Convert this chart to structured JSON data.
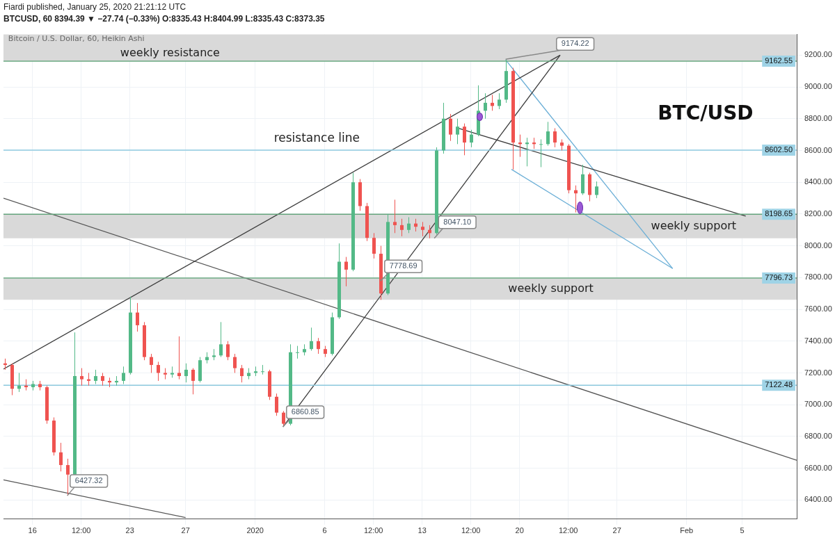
{
  "chart_data": {
    "type": "candlestick",
    "title": "Fiardi published, January 25, 2020 21:21:12 UTC",
    "subtitle": "BTCUSD, 60  8394.39 ▼ −27.74 (−0.33%)  O:8335.43  H:8404.99  L:8335.43  C:8373.35",
    "annotations": [
      "Bitcoin / U.S. Dollar, 60, Heikin Ashi",
      "resistance line",
      "BTC/USD",
      {
        "text": "6427.32",
        "x": "2019-12-18T12:00",
        "y": 6427.32
      },
      {
        "text": "6860.85",
        "x": "2020-01-03T00:00",
        "y": 6860.85
      },
      {
        "text": "7778.69",
        "x": "2020-01-10T00:00",
        "y": 7778.69
      },
      {
        "text": "8047.10",
        "x": "2020-01-13T21:00",
        "y": 8047.1
      },
      {
        "text": "9174.22",
        "x": "2020-01-19T00:00",
        "y": 9174.22
      }
    ],
    "x": [
      "2019-12-14T00:00",
      "2019-12-14T12:00",
      "2019-12-15T00:00",
      "2019-12-15T12:00",
      "2019-12-16T00:00",
      "2019-12-16T12:00",
      "2019-12-17T00:00",
      "2019-12-17T12:00",
      "2019-12-18T00:00",
      "2019-12-18T12:00",
      "2019-12-19T00:00",
      "2019-12-19T12:00",
      "2019-12-20T00:00",
      "2019-12-20T12:00",
      "2019-12-21T00:00",
      "2019-12-21T12:00",
      "2019-12-22T00:00",
      "2019-12-22T12:00",
      "2019-12-23T00:00",
      "2019-12-23T12:00",
      "2019-12-24T00:00",
      "2019-12-24T12:00",
      "2019-12-25T00:00",
      "2019-12-25T12:00",
      "2019-12-26T00:00",
      "2019-12-26T12:00",
      "2019-12-27T00:00",
      "2019-12-27T12:00",
      "2019-12-28T00:00",
      "2019-12-28T12:00",
      "2019-12-29T00:00",
      "2019-12-29T12:00",
      "2019-12-30T00:00",
      "2019-12-30T12:00",
      "2019-12-31T00:00",
      "2019-12-31T12:00",
      "2020-01-01T00:00",
      "2020-01-01T12:00",
      "2020-01-02T00:00",
      "2020-01-02T12:00",
      "2020-01-03T00:00",
      "2020-01-03T12:00",
      "2020-01-04T00:00",
      "2020-01-04T12:00",
      "2020-01-05T00:00",
      "2020-01-05T12:00",
      "2020-01-06T00:00",
      "2020-01-06T12:00",
      "2020-01-07T00:00",
      "2020-01-07T12:00",
      "2020-01-08T00:00",
      "2020-01-08T12:00",
      "2020-01-09T00:00",
      "2020-01-09T12:00",
      "2020-01-10T00:00",
      "2020-01-10T12:00",
      "2020-01-11T00:00",
      "2020-01-11T12:00",
      "2020-01-12T00:00",
      "2020-01-12T12:00",
      "2020-01-13T00:00",
      "2020-01-13T12:00",
      "2020-01-14T00:00",
      "2020-01-14T12:00",
      "2020-01-15T00:00",
      "2020-01-15T12:00",
      "2020-01-16T00:00",
      "2020-01-16T12:00",
      "2020-01-17T00:00",
      "2020-01-17T12:00",
      "2020-01-18T00:00",
      "2020-01-18T12:00",
      "2020-01-19T00:00",
      "2020-01-19T12:00",
      "2020-01-20T00:00",
      "2020-01-20T12:00",
      "2020-01-21T00:00",
      "2020-01-21T12:00",
      "2020-01-22T00:00",
      "2020-01-22T12:00",
      "2020-01-23T00:00",
      "2020-01-23T12:00",
      "2020-01-24T00:00",
      "2020-01-24T12:00",
      "2020-01-25T00:00",
      "2020-01-25T12:00"
    ],
    "ohlc": [
      [
        7260,
        7290,
        7220,
        7250
      ],
      [
        7250,
        7260,
        7060,
        7100
      ],
      [
        7100,
        7200,
        7080,
        7120
      ],
      [
        7120,
        7160,
        7090,
        7110
      ],
      [
        7110,
        7150,
        7090,
        7130
      ],
      [
        7130,
        7150,
        7090,
        7110
      ],
      [
        7110,
        7120,
        6880,
        6900
      ],
      [
        6900,
        6920,
        6680,
        6700
      ],
      [
        6700,
        6760,
        6580,
        6620
      ],
      [
        6620,
        6660,
        6427.32,
        6560
      ],
      [
        6560,
        7455,
        6550,
        7180
      ],
      [
        7180,
        7230,
        7120,
        7160
      ],
      [
        7160,
        7200,
        7120,
        7150
      ],
      [
        7150,
        7220,
        7130,
        7180
      ],
      [
        7180,
        7200,
        7120,
        7150
      ],
      [
        7150,
        7170,
        7110,
        7140
      ],
      [
        7140,
        7180,
        7120,
        7150
      ],
      [
        7150,
        7240,
        7130,
        7200
      ],
      [
        7200,
        7680,
        7190,
        7580
      ],
      [
        7580,
        7640,
        7460,
        7500
      ],
      [
        7500,
        7520,
        7280,
        7300
      ],
      [
        7300,
        7320,
        7200,
        7250
      ],
      [
        7250,
        7270,
        7150,
        7200
      ],
      [
        7200,
        7230,
        7160,
        7190
      ],
      [
        7190,
        7240,
        7170,
        7200
      ],
      [
        7200,
        7430,
        7160,
        7180
      ],
      [
        7180,
        7260,
        7140,
        7220
      ],
      [
        7220,
        7230,
        7065,
        7150
      ],
      [
        7150,
        7300,
        7140,
        7280
      ],
      [
        7280,
        7330,
        7260,
        7300
      ],
      [
        7300,
        7350,
        7280,
        7310
      ],
      [
        7310,
        7520,
        7300,
        7380
      ],
      [
        7380,
        7400,
        7280,
        7300
      ],
      [
        7300,
        7320,
        7200,
        7230
      ],
      [
        7230,
        7250,
        7140,
        7180
      ],
      [
        7180,
        7230,
        7160,
        7200
      ],
      [
        7200,
        7240,
        7180,
        7210
      ],
      [
        7210,
        7250,
        7190,
        7210
      ],
      [
        7210,
        7220,
        7030,
        7050
      ],
      [
        7050,
        7070,
        6930,
        6950
      ],
      [
        6950,
        6960,
        6860.85,
        6880
      ],
      [
        6880,
        7380,
        6870,
        7330
      ],
      [
        7330,
        7370,
        7290,
        7330
      ],
      [
        7330,
        7380,
        7310,
        7350
      ],
      [
        7350,
        7485,
        7340,
        7400
      ],
      [
        7400,
        7420,
        7320,
        7350
      ],
      [
        7350,
        7370,
        7300,
        7320
      ],
      [
        7320,
        7580,
        7310,
        7550
      ],
      [
        7550,
        8015,
        7540,
        7900
      ],
      [
        7900,
        7930,
        7745,
        7850
      ],
      [
        7850,
        8460,
        7840,
        8400
      ],
      [
        8400,
        8420,
        8220,
        8250
      ],
      [
        8250,
        8270,
        8030,
        8050
      ],
      [
        8050,
        8080,
        7920,
        7950
      ],
      [
        7950,
        8000,
        7660,
        7700
      ],
      [
        7700,
        8200,
        7690,
        8150
      ],
      [
        8150,
        8290,
        8080,
        8130
      ],
      [
        8130,
        8170,
        8060,
        8100
      ],
      [
        8100,
        8180,
        8080,
        8140
      ],
      [
        8140,
        8170,
        8090,
        8120
      ],
      [
        8120,
        8150,
        8060,
        8100
      ],
      [
        8100,
        8130,
        8047.1,
        8080
      ],
      [
        8080,
        8620,
        8070,
        8600
      ],
      [
        8600,
        8900,
        8580,
        8800
      ],
      [
        8800,
        8830,
        8660,
        8700
      ],
      [
        8700,
        8800,
        8640,
        8750
      ],
      [
        8750,
        8770,
        8570,
        8650
      ],
      [
        8650,
        8730,
        8620,
        8700
      ],
      [
        8700,
        9010,
        8690,
        8850
      ],
      [
        8850,
        8960,
        8800,
        8900
      ],
      [
        8900,
        8950,
        8850,
        8880
      ],
      [
        8880,
        8960,
        8860,
        8920
      ],
      [
        8920,
        9174.22,
        8900,
        9100
      ],
      [
        9100,
        9120,
        8480,
        8650
      ],
      [
        8650,
        8700,
        8560,
        8640
      ],
      [
        8640,
        8680,
        8500,
        8650
      ],
      [
        8650,
        8680,
        8610,
        8640
      ],
      [
        8640,
        8670,
        8495,
        8640
      ],
      [
        8640,
        8780,
        8630,
        8720
      ],
      [
        8720,
        8740,
        8620,
        8650
      ],
      [
        8650,
        8670,
        8600,
        8630
      ],
      [
        8630,
        8640,
        8330,
        8350
      ],
      [
        8350,
        8380,
        8210,
        8330
      ],
      [
        8330,
        8510,
        8320,
        8450
      ],
      [
        8450,
        8460,
        8280,
        8320
      ],
      [
        8320,
        8404.99,
        8300,
        8373.35
      ]
    ],
    "colors": [
      "#ef5350",
      "#ef5350",
      "#53b987",
      "#ef5350",
      "#53b987",
      "#ef5350",
      "#ef5350",
      "#ef5350",
      "#ef5350",
      "#ef5350",
      "#53b987",
      "#ef5350",
      "#ef5350",
      "#53b987",
      "#ef5350",
      "#ef5350",
      "#53b987",
      "#53b987",
      "#53b987",
      "#ef5350",
      "#ef5350",
      "#ef5350",
      "#ef5350",
      "#ef5350",
      "#53b987",
      "#ef5350",
      "#53b987",
      "#ef5350",
      "#53b987",
      "#53b987",
      "#53b987",
      "#53b987",
      "#ef5350",
      "#ef5350",
      "#ef5350",
      "#53b987",
      "#53b987",
      "#53b987",
      "#ef5350",
      "#ef5350",
      "#ef5350",
      "#53b987",
      "#53b987",
      "#53b987",
      "#53b987",
      "#ef5350",
      "#ef5350",
      "#53b987",
      "#53b987",
      "#ef5350",
      "#53b987",
      "#ef5350",
      "#ef5350",
      "#ef5350",
      "#ef5350",
      "#53b987",
      "#ef5350",
      "#ef5350",
      "#53b987",
      "#ef5350",
      "#ef5350",
      "#ef5350",
      "#53b987",
      "#53b987",
      "#ef5350",
      "#53b987",
      "#ef5350",
      "#53b987",
      "#53b987",
      "#53b987",
      "#ef5350",
      "#53b987",
      "#53b987",
      "#ef5350",
      "#ef5350",
      "#53b987",
      "#ef5350",
      "#53b987",
      "#53b987",
      "#ef5350",
      "#ef5350",
      "#ef5350",
      "#ef5350",
      "#53b987",
      "#ef5350",
      "#53b987"
    ],
    "series": [
      {
        "type": "line",
        "color": "#3c3c3c",
        "x": [
          "2019-12-13T22:00",
          "2020-01-22T22:00"
        ],
        "values": [
          7224,
          9200
        ]
      },
      {
        "type": "line",
        "color": "#3c3c3c",
        "x": [
          "2020-01-03T00:00",
          "2020-01-22T22:00"
        ],
        "values": [
          6860.85,
          9200
        ]
      },
      {
        "type": "line",
        "color": "#555555",
        "x": [
          "2019-12-13T22:00",
          "2020-02-08T22:00"
        ],
        "values": [
          8300,
          6650
        ]
      },
      {
        "type": "line",
        "color": "#555555",
        "x": [
          "2019-12-13T22:00",
          "2019-12-27T00:00"
        ],
        "values": [
          6527,
          6290
        ]
      },
      {
        "type": "line",
        "color": "#3c3c3c",
        "x": [
          "2020-01-15T14:00",
          "2020-02-05T06:00"
        ],
        "values": [
          8740,
          8187
        ]
      },
      {
        "type": "line",
        "color": "#6aaed6",
        "x": [
          "2020-01-19T00:00",
          "2020-01-31T00:00"
        ],
        "values": [
          9170,
          7857
        ]
      },
      {
        "type": "line",
        "color": "#6aaed6",
        "x": [
          "2020-01-19T10:00",
          "2020-01-31T00:00"
        ],
        "values": [
          8481,
          7857
        ]
      }
    ],
    "bands": [
      {
        "axis": "y",
        "from": 9162.55,
        "to": 9330,
        "label": "weekly resistance",
        "color": "#d9d9d9"
      },
      {
        "axis": "y",
        "from": 8047.1,
        "to": 8198.65,
        "label": "weekly support",
        "color": "#d9d9d9"
      },
      {
        "axis": "y",
        "from": 7660,
        "to": 7796.73,
        "label": "weekly support",
        "color": "#d9d9d9"
      }
    ],
    "ref_lines": [
      {
        "axis": "y",
        "value": 9162.55,
        "label": "9162.55",
        "color": "#6aa880"
      },
      {
        "axis": "y",
        "value": 8602.5,
        "label": "8602.50",
        "color": "#8fcbe0"
      },
      {
        "axis": "y",
        "value": 8198.65,
        "label": "8198.65",
        "color": "#66a67c"
      },
      {
        "axis": "y",
        "value": 7796.73,
        "label": "7796.73",
        "color": "#6eab84"
      },
      {
        "axis": "y",
        "value": 7122.48,
        "label": "7122.48",
        "color": "#8bc8dd"
      }
    ],
    "xlim": [
      "2019-12-13T22:00",
      "2020-02-08T22:00"
    ],
    "xticks": [
      {
        "value": "2019-12-16",
        "label": "16"
      },
      {
        "value": "2019-12-19T12:00",
        "label": "12:00"
      },
      {
        "value": "2019-12-23",
        "label": "23"
      },
      {
        "value": "2019-12-27",
        "label": "27"
      },
      {
        "value": "2020-01-01",
        "label": "2020"
      },
      {
        "value": "2020-01-06",
        "label": "6"
      },
      {
        "value": "2020-01-09T12:00",
        "label": "12:00"
      },
      {
        "value": "2020-01-13",
        "label": "13"
      },
      {
        "value": "2020-01-16T12:00",
        "label": "12:00"
      },
      {
        "value": "2020-01-20",
        "label": "20"
      },
      {
        "value": "2020-01-23T12:00",
        "label": "12:00"
      },
      {
        "value": "2020-01-27",
        "label": "27"
      },
      {
        "value": "2020-02-01",
        "label": "Feb"
      },
      {
        "value": "2020-02-05",
        "label": "5"
      }
    ],
    "ylim": [
      6280,
      9330
    ],
    "yticks": [
      {
        "value": 6400,
        "label": "6400.00"
      },
      {
        "value": 6600,
        "label": "6600.00"
      },
      {
        "value": 6800,
        "label": "6800.00"
      },
      {
        "value": 7000,
        "label": "7000.00"
      },
      {
        "value": 7200,
        "label": "7200.00"
      },
      {
        "value": 7400,
        "label": "7400.00"
      },
      {
        "value": 7600,
        "label": "7600.00"
      },
      {
        "value": 7800,
        "label": "7800.00"
      },
      {
        "value": 8000,
        "label": "8000.00"
      },
      {
        "value": 8200,
        "label": "8200.00"
      },
      {
        "value": 8400,
        "label": "8400.00"
      },
      {
        "value": 8600,
        "label": "8600.00"
      },
      {
        "value": 8800,
        "label": "8800.00"
      },
      {
        "value": 9000,
        "label": "9000.00"
      },
      {
        "value": 9200,
        "label": "9200.00"
      }
    ],
    "grid": true,
    "legend": false
  }
}
